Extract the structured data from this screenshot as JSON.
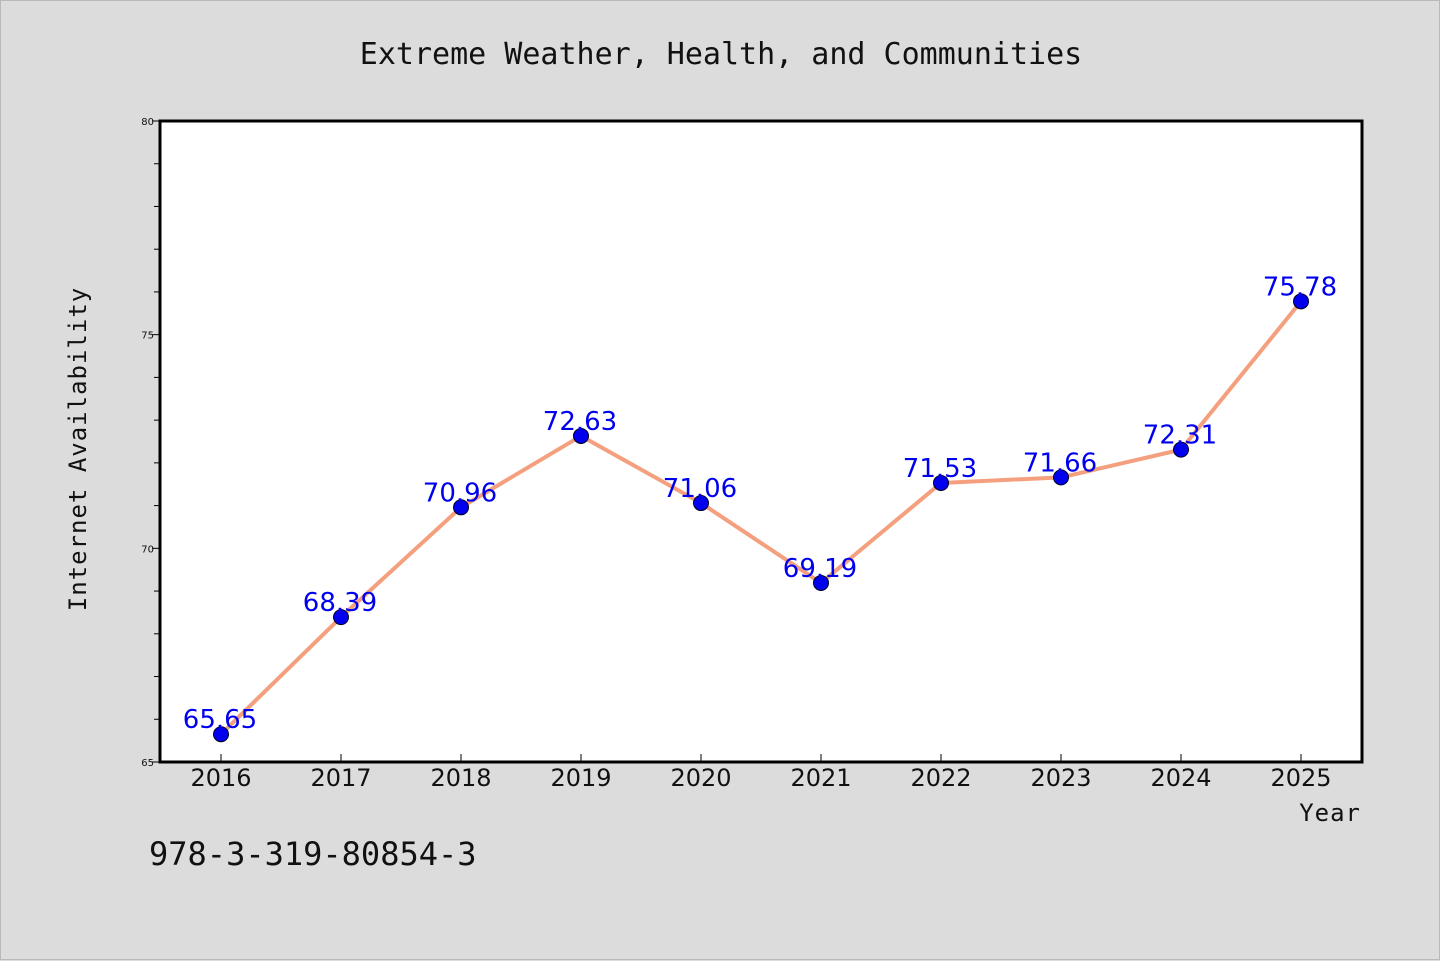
{
  "chart_data": {
    "type": "line",
    "title": "Extreme Weather, Health, and Communities",
    "xlabel": "Year",
    "ylabel": "Internet Availability",
    "x": [
      "2016",
      "2017",
      "2018",
      "2019",
      "2020",
      "2021",
      "2022",
      "2023",
      "2024",
      "2025"
    ],
    "series": [
      {
        "values": [
          65.65,
          68.39,
          70.96,
          72.63,
          71.06,
          69.19,
          71.53,
          71.66,
          72.31,
          75.78
        ]
      }
    ],
    "ylim": [
      65,
      80
    ],
    "yticks": [
      65,
      70,
      75,
      80
    ],
    "grid": false,
    "legend": "none",
    "line_color": "#f4a07e",
    "marker_color": "#0000ee",
    "label_color": "#0000ee"
  },
  "footer": {
    "isbn": "978-3-319-80854-3"
  }
}
